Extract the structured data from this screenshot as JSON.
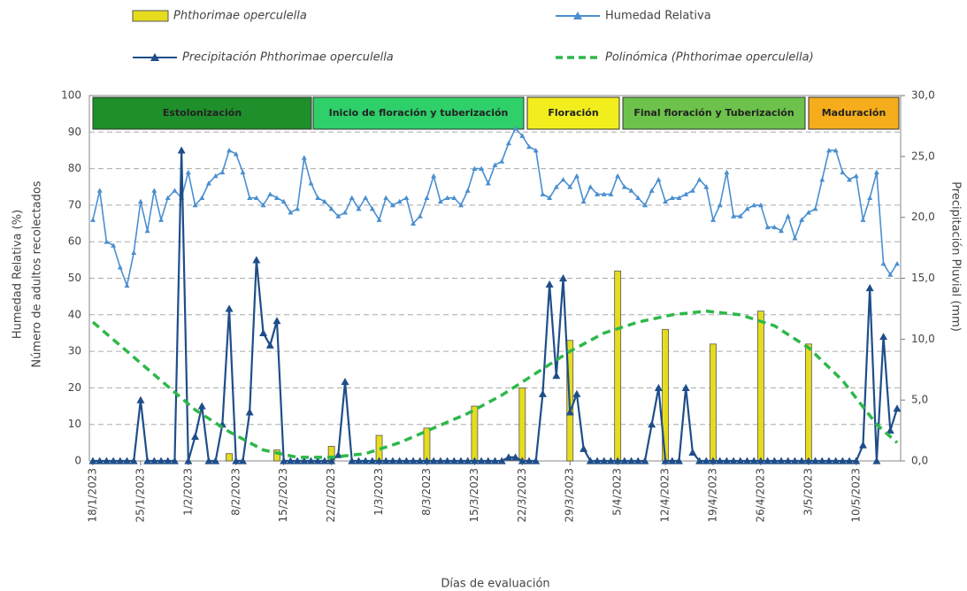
{
  "chart_data": {
    "type": "combo",
    "x_label": "Días de evaluación",
    "y_label": [
      "Humedad Relativa (%)",
      "Número de adultos recolectados"
    ],
    "y2_label": "Precipitación Pluvial (mm)",
    "xlim": [
      0,
      118
    ],
    "xticks": [
      {
        "value": 0,
        "label": "18/1/2023"
      },
      {
        "value": 7,
        "label": "25/1/2023"
      },
      {
        "value": 14,
        "label": "1/2/2023"
      },
      {
        "value": 21,
        "label": "8/2/2023"
      },
      {
        "value": 28,
        "label": "15/2/2023"
      },
      {
        "value": 35,
        "label": "22/2/2023"
      },
      {
        "value": 42,
        "label": "1/3/2023"
      },
      {
        "value": 49,
        "label": "8/3/2023"
      },
      {
        "value": 56,
        "label": "15/3/2023"
      },
      {
        "value": 63,
        "label": "22/3/2023"
      },
      {
        "value": 70,
        "label": "29/3/2023"
      },
      {
        "value": 77,
        "label": "5/4/2023"
      },
      {
        "value": 84,
        "label": "12/4/2023"
      },
      {
        "value": 91,
        "label": "19/4/2023"
      },
      {
        "value": 98,
        "label": "26/4/2023"
      },
      {
        "value": 105,
        "label": "3/5/2023"
      },
      {
        "value": 112,
        "label": "10/5/2023"
      }
    ],
    "ylim": [
      0,
      100
    ],
    "yticks": [
      0,
      10,
      20,
      30,
      40,
      50,
      60,
      70,
      80,
      90,
      100
    ],
    "y2lim": [
      0,
      30
    ],
    "y2ticks": [
      {
        "value": 0,
        "label": "0,0"
      },
      {
        "value": 5,
        "label": "5,0"
      },
      {
        "value": 10,
        "label": "10,0"
      },
      {
        "value": 15,
        "label": "15,0"
      },
      {
        "value": 20,
        "label": "20,0"
      },
      {
        "value": 25,
        "label": "25,0"
      },
      {
        "value": 30,
        "label": "30,0"
      }
    ],
    "grid": true,
    "phases": [
      {
        "label": "Estolonización",
        "color": "#1e8f2a"
      },
      {
        "label": "Inicio de floración y tuberización",
        "color": "#2fcf6a"
      },
      {
        "label": "Floración",
        "color": "#f2ee1e"
      },
      {
        "label": "Final floración y Tuberización",
        "color": "#6cc24a"
      },
      {
        "label": "Maduración",
        "color": "#f6ad1b"
      }
    ],
    "x": [
      0,
      1,
      2,
      3,
      4,
      5,
      6,
      7,
      8,
      9,
      10,
      11,
      12,
      13,
      14,
      15,
      16,
      17,
      18,
      19,
      20,
      21,
      22,
      23,
      24,
      25,
      26,
      27,
      28,
      29,
      30,
      31,
      32,
      33,
      34,
      35,
      36,
      37,
      38,
      39,
      40,
      41,
      42,
      43,
      44,
      45,
      46,
      47,
      48,
      49,
      50,
      51,
      52,
      53,
      54,
      55,
      56,
      57,
      58,
      59,
      60,
      61,
      62,
      63,
      64,
      65,
      66,
      67,
      68,
      69,
      70,
      71,
      72,
      73,
      74,
      75,
      76,
      77,
      78,
      79,
      80,
      81,
      82,
      83,
      84,
      85,
      86,
      87,
      88,
      89,
      90,
      91,
      92,
      93,
      94,
      95,
      96,
      97,
      98,
      99,
      100,
      101,
      102,
      103,
      104,
      105,
      106,
      107,
      108,
      109,
      110,
      111,
      112,
      113,
      114,
      115,
      116,
      117,
      118
    ],
    "series": [
      {
        "name": "Phthorimae operculella",
        "kind": "bar",
        "color": "#e6dc1e",
        "x": [
          20,
          27,
          35,
          42,
          49,
          56,
          63,
          70,
          77,
          84,
          91,
          98,
          105
        ],
        "values": [
          2,
          3,
          4,
          7,
          9,
          15,
          20,
          33,
          52,
          36,
          32,
          41,
          32
        ]
      },
      {
        "name": "Humedad Relativa",
        "kind": "line",
        "color": "#4a8fd0",
        "values": [
          66,
          74,
          60,
          59,
          53,
          48,
          57,
          71,
          63,
          74,
          66,
          72,
          74,
          72,
          79,
          70,
          72,
          76,
          78,
          79,
          85,
          84,
          79,
          72,
          72,
          70,
          73,
          72,
          71,
          68,
          69,
          83,
          76,
          72,
          71,
          69,
          67,
          68,
          72,
          69,
          72,
          69,
          66,
          72,
          70,
          71,
          72,
          65,
          67,
          72,
          78,
          71,
          72,
          72,
          70,
          74,
          80,
          80,
          76,
          81,
          82,
          87,
          91,
          89,
          86,
          85,
          73,
          72,
          75,
          77,
          75,
          78,
          71,
          75,
          73,
          73,
          73,
          78,
          75,
          74,
          72,
          70,
          74,
          77,
          71,
          72,
          72,
          73,
          74,
          77,
          75,
          66,
          70,
          79,
          67,
          67,
          69,
          70,
          70,
          64,
          64,
          63,
          67,
          61,
          66,
          68,
          69,
          77,
          85,
          85,
          79,
          77,
          78,
          66,
          72,
          79,
          54,
          51,
          54
        ]
      },
      {
        "name": "Precipitación Phthorimae operculella",
        "kind": "line",
        "axis": "y2",
        "color": "#1f4e89",
        "values": [
          0,
          0,
          0,
          0,
          0,
          0,
          0,
          5,
          0,
          0,
          0,
          0,
          0,
          25.5,
          0,
          2,
          4.5,
          0,
          0,
          3,
          12.5,
          0,
          0,
          4,
          16.5,
          10.5,
          9.5,
          11.5,
          0,
          0,
          0,
          0,
          0,
          0,
          0,
          0,
          0.5,
          6.5,
          0,
          0,
          0,
          0,
          0,
          0,
          0,
          0,
          0,
          0,
          0,
          0,
          0,
          0,
          0,
          0,
          0,
          0,
          0,
          0,
          0,
          0,
          0,
          0.3,
          0.3,
          0,
          0,
          0,
          5.5,
          14.5,
          7,
          15,
          4,
          5.5,
          1,
          0,
          0,
          0,
          0,
          0,
          0,
          0,
          0,
          0,
          3,
          6,
          0,
          0,
          0,
          6,
          0.7,
          0,
          0,
          0,
          0,
          0,
          0,
          0,
          0,
          0,
          0,
          0,
          0,
          0,
          0,
          0,
          0,
          0,
          0,
          0,
          0,
          0,
          0,
          0,
          0,
          1.3,
          14.2,
          0,
          10.2,
          2.5,
          4.3
        ]
      },
      {
        "name": "Polinómica (Phthorimae operculella)",
        "kind": "trend",
        "color": "#2db84a",
        "x": [
          0,
          5,
          10,
          15,
          20,
          25,
          30,
          35,
          40,
          45,
          50,
          55,
          60,
          65,
          70,
          75,
          80,
          85,
          90,
          95,
          100,
          105,
          110,
          115,
          118
        ],
        "values": [
          38,
          30,
          22,
          14,
          8,
          3,
          1,
          1,
          2,
          5,
          9,
          13,
          18,
          24,
          30,
          35,
          38,
          40,
          41,
          40,
          37,
          31,
          22,
          10,
          5
        ]
      }
    ]
  }
}
